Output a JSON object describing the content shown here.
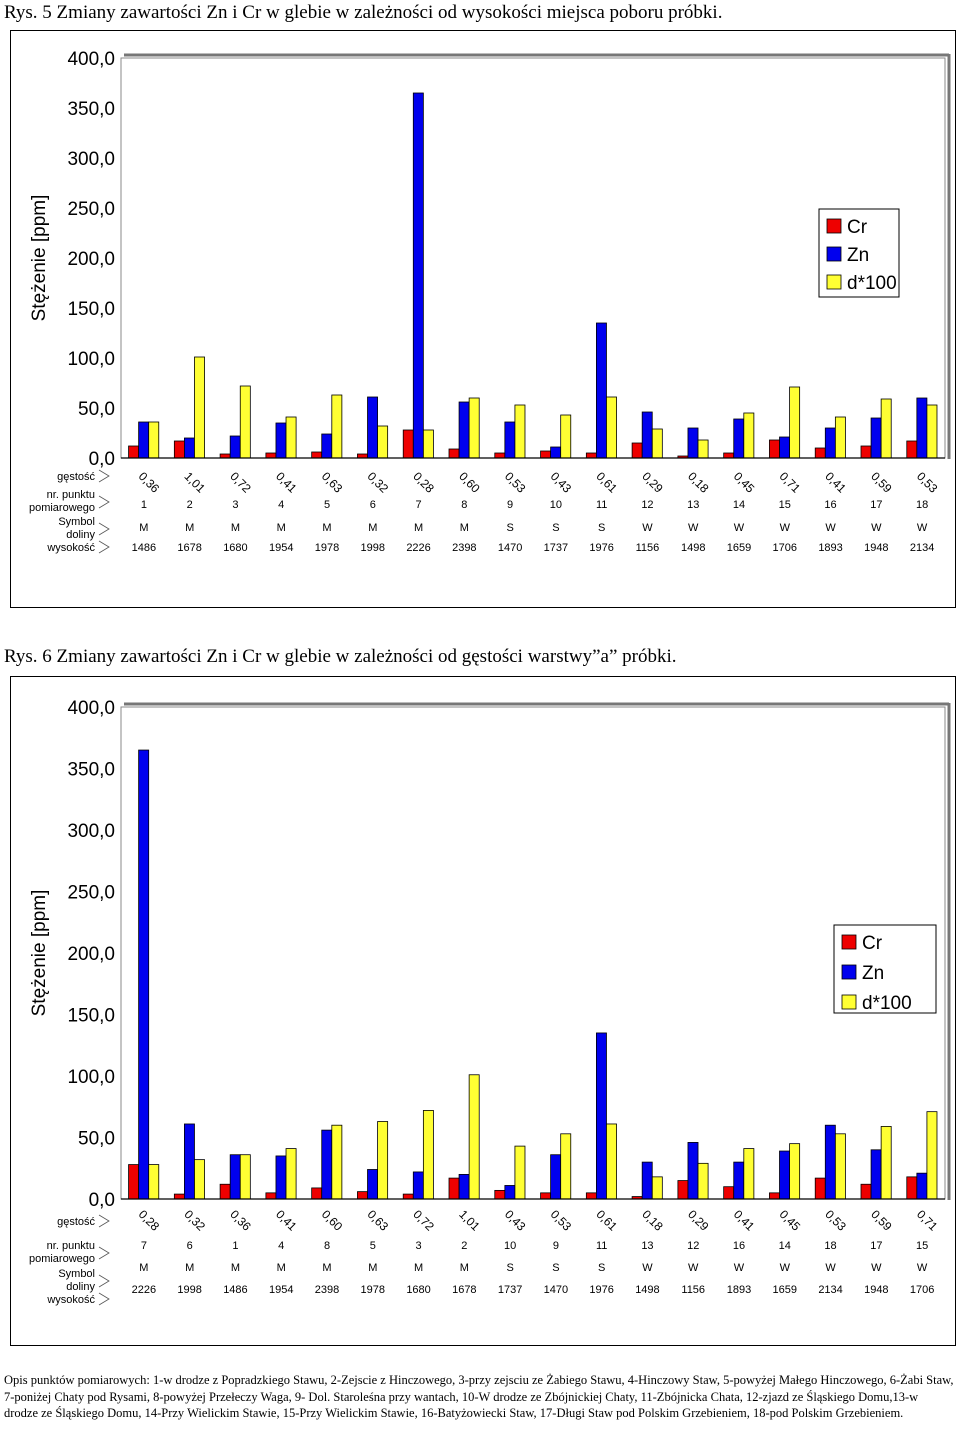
{
  "captions": {
    "fig5": "Rys. 5 Zmiany zawartości Zn i Cr w glebie w zależności od wysokości miejsca poboru próbki.",
    "fig6": "Rys. 6 Zmiany zawartości Zn i Cr w glebie w zależności od gęstości warstwy”a” próbki."
  },
  "colors": {
    "Cr": "#ee0000",
    "Zn": "#0000ee",
    "d*100": "#ffff33"
  },
  "chart_data": [
    {
      "type": "bar",
      "ylabel": "Stężenie [ppm]",
      "ylim": [
        0,
        400
      ],
      "yticks": [
        "0,0",
        "50,0",
        "100,0",
        "150,0",
        "200,0",
        "250,0",
        "300,0",
        "350,0",
        "400,0"
      ],
      "legend": {
        "position": "right",
        "entries": [
          "Cr",
          "Zn",
          "d*100"
        ]
      },
      "rows": [
        {
          "label": "gęstość",
          "values": [
            "0,36",
            "1,01",
            "0,72",
            "0,41",
            "0,63",
            "0,32",
            "0,28",
            "0,60",
            "0,53",
            "0,43",
            "0,61",
            "0,29",
            "0,18",
            "0,45",
            "0,71",
            "0,41",
            "0,59",
            "0,53"
          ]
        },
        {
          "label": "nr. punktu pomiarowego",
          "values": [
            "1",
            "2",
            "3",
            "4",
            "5",
            "6",
            "7",
            "8",
            "9",
            "10",
            "11",
            "12",
            "13",
            "14",
            "15",
            "16",
            "17",
            "18"
          ]
        },
        {
          "label": "Symbol doliny",
          "values": [
            "M",
            "M",
            "M",
            "M",
            "M",
            "M",
            "M",
            "M",
            "S",
            "S",
            "S",
            "W",
            "W",
            "W",
            "W",
            "W",
            "W",
            "W"
          ]
        },
        {
          "label": "wysokość",
          "values": [
            "1486",
            "1678",
            "1680",
            "1954",
            "1978",
            "1998",
            "2226",
            "2398",
            "1470",
            "1737",
            "1976",
            "1156",
            "1498",
            "1659",
            "1706",
            "1893",
            "1948",
            "2134"
          ]
        }
      ],
      "series": [
        {
          "name": "Cr",
          "values": [
            12,
            17,
            4,
            5,
            6,
            4,
            28,
            9,
            5,
            7,
            5,
            15,
            2,
            5,
            18,
            10,
            12,
            17
          ]
        },
        {
          "name": "Zn",
          "values": [
            36,
            20,
            22,
            35,
            24,
            61,
            365,
            56,
            36,
            11,
            135,
            46,
            30,
            39,
            21,
            30,
            40,
            60
          ]
        },
        {
          "name": "d*100",
          "values": [
            36,
            101,
            72,
            41,
            63,
            32,
            28,
            60,
            53,
            43,
            61,
            29,
            18,
            45,
            71,
            41,
            59,
            53
          ]
        }
      ]
    },
    {
      "type": "bar",
      "ylabel": "Stężenie [ppm]",
      "ylim": [
        0,
        400
      ],
      "yticks": [
        "0,0",
        "50,0",
        "100,0",
        "150,0",
        "200,0",
        "250,0",
        "300,0",
        "350,0",
        "400,0"
      ],
      "legend": {
        "position": "right",
        "entries": [
          "Cr",
          "Zn",
          "d*100"
        ]
      },
      "rows": [
        {
          "label": "gęstość",
          "values": [
            "0,28",
            "0,32",
            "0,36",
            "0,41",
            "0,60",
            "0,63",
            "0,72",
            "1,01",
            "0,43",
            "0,53",
            "0,61",
            "0,18",
            "0,29",
            "0,41",
            "0,45",
            "0,53",
            "0,59",
            "0,71"
          ]
        },
        {
          "label": "nr. punktu pomiarowego",
          "values": [
            "7",
            "6",
            "1",
            "4",
            "8",
            "5",
            "3",
            "2",
            "10",
            "9",
            "11",
            "13",
            "12",
            "16",
            "14",
            "18",
            "17",
            "15"
          ]
        },
        {
          "label": "Symbol doliny",
          "values": [
            "M",
            "M",
            "M",
            "M",
            "M",
            "M",
            "M",
            "M",
            "S",
            "S",
            "S",
            "W",
            "W",
            "W",
            "W",
            "W",
            "W",
            "W"
          ]
        },
        {
          "label": "wysokość",
          "values": [
            "2226",
            "1998",
            "1486",
            "1954",
            "2398",
            "1978",
            "1680",
            "1678",
            "1737",
            "1470",
            "1976",
            "1498",
            "1156",
            "1893",
            "1659",
            "2134",
            "1948",
            "1706"
          ]
        }
      ],
      "series": [
        {
          "name": "Cr",
          "values": [
            28,
            4,
            12,
            5,
            9,
            6,
            4,
            17,
            7,
            5,
            5,
            2,
            15,
            10,
            5,
            17,
            12,
            18
          ]
        },
        {
          "name": "Zn",
          "values": [
            365,
            61,
            36,
            35,
            56,
            24,
            22,
            20,
            11,
            36,
            135,
            30,
            46,
            30,
            39,
            60,
            40,
            21
          ]
        },
        {
          "name": "d*100",
          "values": [
            28,
            32,
            36,
            41,
            60,
            63,
            72,
            101,
            43,
            53,
            61,
            18,
            29,
            41,
            45,
            53,
            59,
            71
          ]
        }
      ]
    }
  ],
  "footer": "Opis punktów pomiarowych: 1-w drodze z Popradzkiego Stawu, 2-Zejscie z Hinczowego, 3-przy zejsciu ze Żabiego Stawu, 4-Hinczowy Staw, 5-powyżej Małego Hinczowego, 6-Żabi Staw, 7-poniżej Chaty pod Rysami, 8-powyżej Przełeczy Waga, 9- Dol. Staroleśna przy wantach, 10-W drodze ze Zbójnickiej Chaty, 11-Zbójnicka Chata, 12-zjazd ze Śląskiego Domu,13-w drodze ze Śląskiego Domu, 14-Przy Wielickim Stawie, 15-Przy Wielickim Stawie, 16-Batyżowiecki Staw, 17-Długi Staw pod Polskim Grzebieniem, 18-pod Polskim Grzebieniem."
}
